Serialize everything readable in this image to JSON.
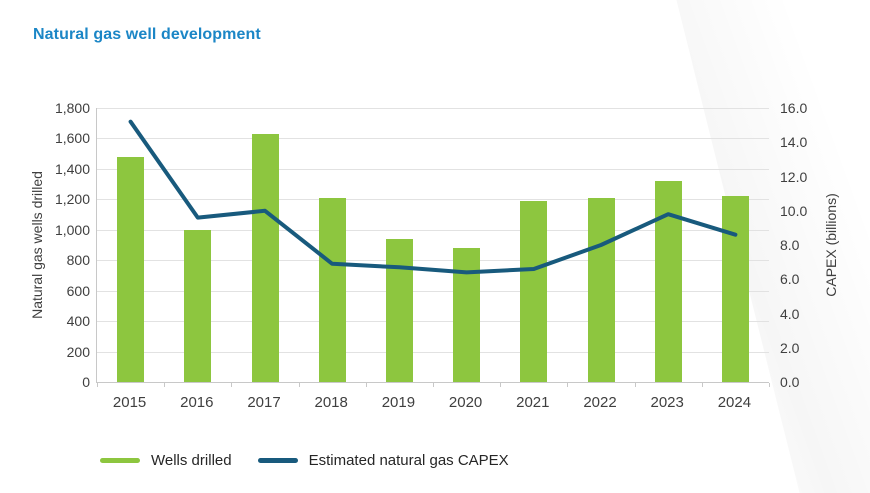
{
  "page": {
    "title": "Natural gas well development"
  },
  "colors": {
    "title": "#1b86c6",
    "bar": "#8dc63f",
    "line": "#185a7d",
    "tick_text": "#3f3f3f",
    "axis_title_text": "#3f3f3f",
    "x_label_text": "#3f3f3f",
    "legend_text": "#262626",
    "gridline": "#e2e2e2",
    "axis_line": "#c8c8c8",
    "background": "#ffffff"
  },
  "chart_data": {
    "type": "combo-bar-line",
    "title": "Natural gas well development",
    "categories": [
      "2015",
      "2016",
      "2017",
      "2018",
      "2019",
      "2020",
      "2021",
      "2022",
      "2023",
      "2024"
    ],
    "series": [
      {
        "name": "Wells drilled",
        "type": "bar",
        "axis": "left",
        "color": "#8dc63f",
        "values": [
          1480,
          1000,
          1630,
          1210,
          940,
          880,
          1190,
          1210,
          1320,
          1220
        ]
      },
      {
        "name": "Estimated natural gas CAPEX",
        "type": "line",
        "axis": "right",
        "color": "#185a7d",
        "values": [
          15.2,
          9.6,
          10.0,
          6.9,
          6.7,
          6.4,
          6.6,
          8.0,
          9.8,
          8.6
        ]
      }
    ],
    "left_axis": {
      "label": "Natural gas wells drilled",
      "range": [
        0,
        1800
      ],
      "tick_step": 200,
      "ticks": [
        "0",
        "200",
        "400",
        "600",
        "800",
        "1,000",
        "1,200",
        "1,400",
        "1,600",
        "1,800"
      ]
    },
    "right_axis": {
      "label": "CAPEX (billions)",
      "range": [
        0,
        16
      ],
      "tick_step": 2,
      "ticks": [
        "0.0",
        "2.0",
        "4.0",
        "6.0",
        "8.0",
        "10.0",
        "12.0",
        "14.0",
        "16.0"
      ]
    },
    "grid": true,
    "legend_position": "bottom-left"
  }
}
